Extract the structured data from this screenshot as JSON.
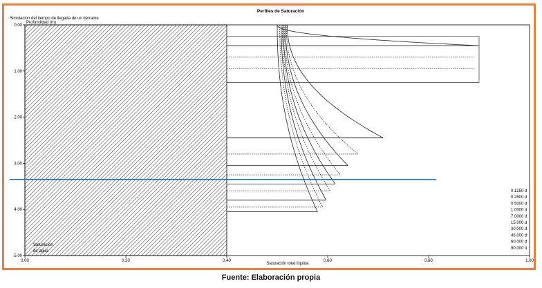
{
  "source_caption": "Fuente: Elaboración propia",
  "chart_data": {
    "type": "line",
    "title": "Perfiles de Saturación",
    "subtitle": "Simulacion del tiempo de llegada de un derrame",
    "ylabel": "Profundidad (m)",
    "xlabel": "Saturación total líquida",
    "xlim": [
      0,
      1
    ],
    "ylim": [
      0,
      5
    ],
    "y_inverted": true,
    "x_ticks": [
      "0.00",
      "0.20",
      "0.40",
      "0.60",
      "0.80",
      "1.00"
    ],
    "y_ticks": [
      "0.00",
      "1.00",
      "2.00",
      "3.00",
      "4.00",
      "5.00"
    ],
    "water_saturation_zone": {
      "x_max": 0.4,
      "label": [
        "Saturación",
        "de agua"
      ]
    },
    "water_table_depth": 3.35,
    "water_table_color": "#1a6fc4",
    "legend_position": "bottom-right",
    "series": [
      {
        "name": "0.1250 d",
        "front_depth": 4.05,
        "max_sat": 0.58,
        "top_sat": 0.5,
        "style": "solid"
      },
      {
        "name": "0.2500 d",
        "front_depth": 3.95,
        "max_sat": 0.59,
        "top_sat": 0.505,
        "style": "dotted"
      },
      {
        "name": "0.5000 d",
        "front_depth": 3.8,
        "max_sat": 0.597,
        "top_sat": 0.508,
        "style": "solid"
      },
      {
        "name": "1.0000 d",
        "front_depth": 3.6,
        "max_sat": 0.605,
        "top_sat": 0.51,
        "style": "dotted"
      },
      {
        "name": "7.0000 d",
        "front_depth": 3.45,
        "max_sat": 0.615,
        "top_sat": 0.512,
        "style": "solid"
      },
      {
        "name": "15.000 d",
        "front_depth": 3.25,
        "max_sat": 0.625,
        "top_sat": 0.514,
        "style": "dotted"
      },
      {
        "name": "30.000 d",
        "front_depth": 3.05,
        "max_sat": 0.64,
        "top_sat": 0.516,
        "style": "solid"
      },
      {
        "name": "45.000 d",
        "front_depth": 2.8,
        "max_sat": 0.66,
        "top_sat": 0.518,
        "style": "dotted"
      },
      {
        "name": "60.000 d",
        "front_depth": 2.45,
        "max_sat": 0.71,
        "top_sat": 0.52,
        "style": "solid"
      },
      {
        "name": "90.000 d",
        "front_depth": 0.45,
        "max_sat": 0.9,
        "top_sat": 0.5,
        "style": "solid"
      }
    ],
    "horizontal_guides": [
      {
        "depth": 0.25,
        "x_end": 0.9,
        "style": "solid"
      },
      {
        "depth": 0.45,
        "x_end": 0.9,
        "style": "solid"
      },
      {
        "depth": 0.7,
        "x_end": 0.89,
        "style": "dotted"
      },
      {
        "depth": 0.95,
        "x_end": 0.89,
        "style": "dotted"
      },
      {
        "depth": 1.25,
        "x_end": 0.9,
        "style": "solid"
      }
    ]
  }
}
